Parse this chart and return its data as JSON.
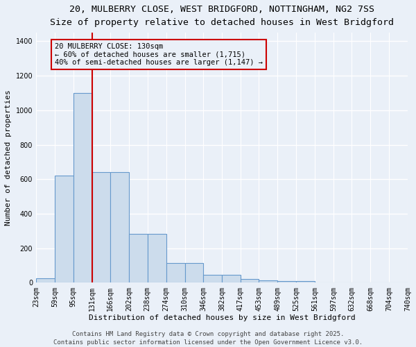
{
  "title1": "20, MULBERRY CLOSE, WEST BRIDGFORD, NOTTINGHAM, NG2 7SS",
  "title2": "Size of property relative to detached houses in West Bridgford",
  "xlabel": "Distribution of detached houses by size in West Bridgford",
  "ylabel": "Number of detached properties",
  "bin_edges": [
    23,
    59,
    95,
    131,
    166,
    202,
    238,
    274,
    310,
    346,
    382,
    417,
    453,
    489,
    525,
    561,
    597,
    632,
    668,
    704,
    740
  ],
  "bar_heights": [
    25,
    620,
    1100,
    640,
    640,
    285,
    285,
    115,
    115,
    45,
    45,
    20,
    15,
    8,
    8,
    0,
    0,
    0,
    0,
    0
  ],
  "bar_color": "#ccdcec",
  "bar_edge_color": "#6699cc",
  "bar_edge_width": 0.8,
  "red_line_x": 131,
  "red_line_color": "#cc0000",
  "annotation_text": "20 MULBERRY CLOSE: 130sqm\n← 60% of detached houses are smaller (1,715)\n40% of semi-detached houses are larger (1,147) →",
  "annotation_box_color": "#cc0000",
  "annotation_text_color": "#000000",
  "ylim": [
    0,
    1450
  ],
  "yticks": [
    0,
    200,
    400,
    600,
    800,
    1000,
    1200,
    1400
  ],
  "bg_color": "#eaf0f8",
  "grid_color": "#ffffff",
  "tick_labels": [
    "23sqm",
    "59sqm",
    "95sqm",
    "131sqm",
    "166sqm",
    "202sqm",
    "238sqm",
    "274sqm",
    "310sqm",
    "346sqm",
    "382sqm",
    "417sqm",
    "453sqm",
    "489sqm",
    "525sqm",
    "561sqm",
    "597sqm",
    "632sqm",
    "668sqm",
    "704sqm",
    "740sqm"
  ],
  "footer_text": "Contains HM Land Registry data © Crown copyright and database right 2025.\nContains public sector information licensed under the Open Government Licence v3.0.",
  "title1_fontsize": 9.5,
  "title2_fontsize": 8.5,
  "xlabel_fontsize": 8,
  "ylabel_fontsize": 8,
  "tick_fontsize": 7,
  "annotation_fontsize": 7.5,
  "footer_fontsize": 6.5
}
